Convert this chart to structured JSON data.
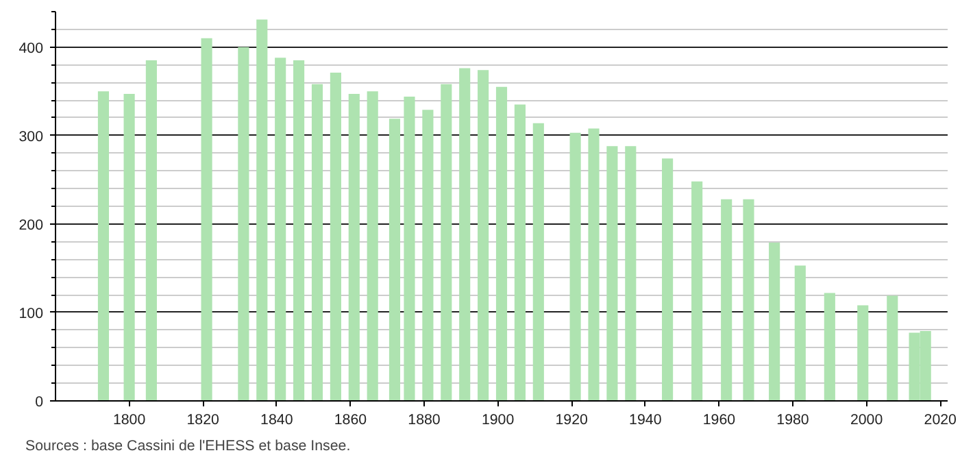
{
  "chart_data": {
    "type": "bar",
    "x": [
      1793,
      1800,
      1806,
      1821,
      1831,
      1836,
      1841,
      1846,
      1851,
      1856,
      1861,
      1866,
      1872,
      1876,
      1881,
      1886,
      1891,
      1896,
      1901,
      1906,
      1911,
      1921,
      1926,
      1931,
      1936,
      1946,
      1954,
      1962,
      1968,
      1975,
      1982,
      1990,
      1999,
      2007,
      2013,
      2016
    ],
    "values": [
      350,
      347,
      385,
      410,
      400,
      431,
      388,
      385,
      358,
      371,
      347,
      350,
      319,
      344,
      329,
      358,
      376,
      374,
      355,
      335,
      314,
      303,
      308,
      288,
      288,
      274,
      248,
      228,
      228,
      179,
      153,
      122,
      108,
      119,
      77,
      79
    ],
    "color": "#aee3b0",
    "xlim": [
      1780,
      2022
    ],
    "xticks": [
      1800,
      1820,
      1840,
      1860,
      1880,
      1900,
      1920,
      1940,
      1960,
      1980,
      2000,
      2020
    ],
    "ylim": [
      0,
      440
    ],
    "yticks": [
      0,
      {
        "value": 20,
        "label": null
      },
      {
        "value": 40,
        "label": null
      },
      {
        "value": 60,
        "label": null
      },
      {
        "value": 80,
        "label": null
      },
      100,
      {
        "value": 120,
        "label": null
      },
      {
        "value": 140,
        "label": null
      },
      {
        "value": 160,
        "label": null
      },
      {
        "value": 180,
        "label": null
      },
      200,
      {
        "value": 220,
        "label": null
      },
      {
        "value": 240,
        "label": null
      },
      {
        "value": 260,
        "label": null
      },
      {
        "value": 280,
        "label": null
      },
      300,
      {
        "value": 320,
        "label": null
      },
      {
        "value": 340,
        "label": null
      },
      {
        "value": 360,
        "label": null
      },
      {
        "value": 380,
        "label": null
      },
      400,
      {
        "value": 420,
        "label": null
      },
      {
        "value": 440,
        "label": null
      }
    ],
    "grid": "y",
    "annotations": [
      "Sources : base Cassini de l'EHESS et base Insee."
    ]
  }
}
